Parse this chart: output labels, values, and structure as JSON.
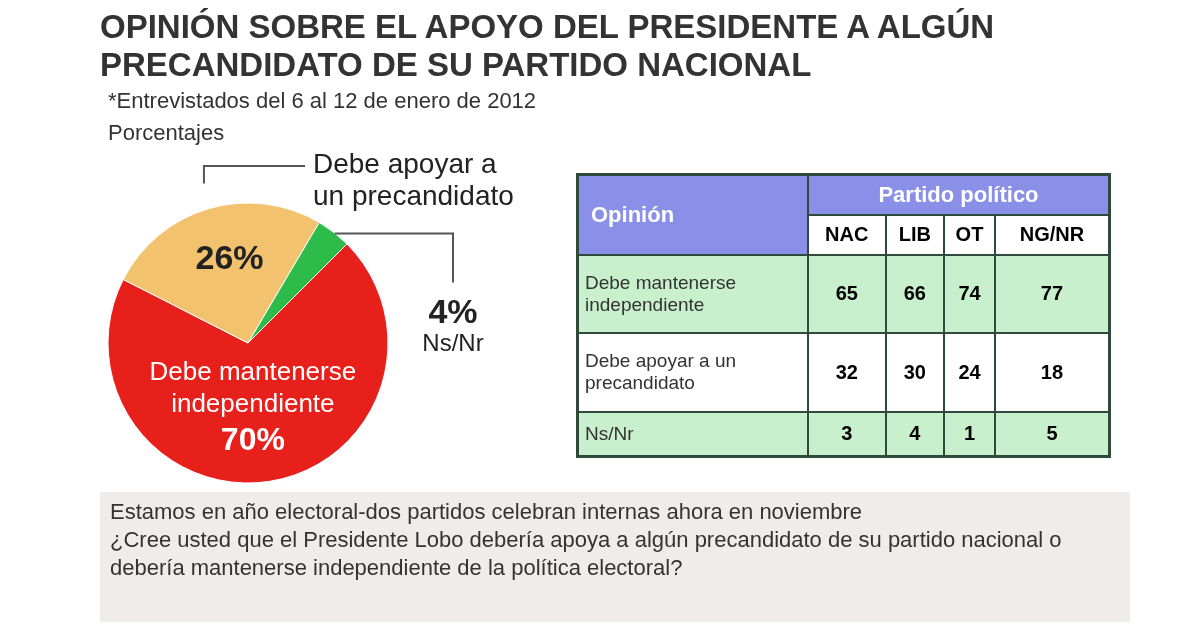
{
  "chart_data": [
    {
      "type": "pie",
      "title": "OPINIÓN SOBRE EL APOYO DEL PRESIDENTE A ALGÚN PRECANDIDATO DE SU PARTIDO NACIONAL",
      "subtitle": "*Entrevistados del 6 al 12 de enero de 2012",
      "annotations": [
        "Porcentajes",
        "Estamos en año electoral-dos partidos celebran internas ahora en noviembre\n¿Cree usted que el Presidente Lobo debería apoya a algún precandidato de su partido nacional o debería mantenerse independiente de la política electoral?"
      ],
      "categories": [
        "Debe mantenerse independiente",
        "Debe apoyar a un precandidato",
        "Ns/Nr"
      ],
      "values": [
        70,
        26,
        4
      ],
      "colors": [
        "#e8201c",
        "#f2c26e",
        "#2dbb4a"
      ],
      "value_labels": [
        "70%",
        "26%",
        "4%"
      ]
    },
    {
      "type": "heatmap",
      "ylabel": "Opinión",
      "xlabel": "Partido político",
      "categories": [
        "NAC",
        "LIB",
        "OT",
        "NG/NR"
      ],
      "y_categories": [
        "Debe mantenerse independiente",
        "Debe apoyar a un precandidato",
        "Ns/Nr"
      ],
      "cells": [
        [
          65,
          66,
          74,
          77
        ],
        [
          32,
          30,
          24,
          18
        ],
        [
          3,
          4,
          1,
          5
        ]
      ],
      "colors": [
        "#c9f0cc",
        "#ffffff",
        "#c9f0cc"
      ],
      "data_labels": true
    }
  ]
}
